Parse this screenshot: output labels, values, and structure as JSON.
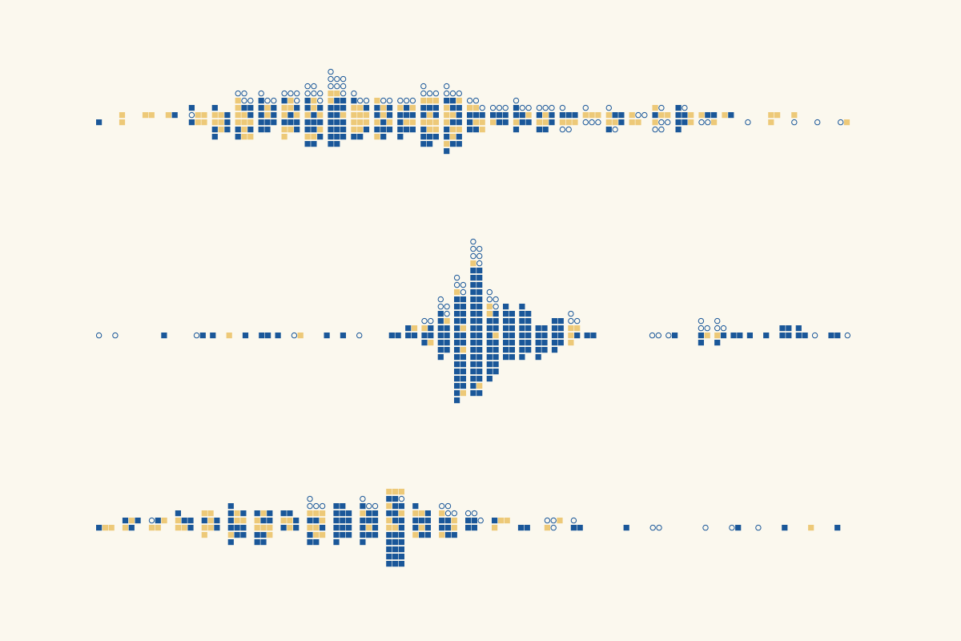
{
  "background": "#FBF8EE",
  "legend_categories": [
    {
      "key": "blue",
      "shape": "square",
      "color": "#1A5799"
    },
    {
      "key": "gold",
      "shape": "square",
      "color": "#EDC978"
    },
    {
      "key": "open",
      "shape": "circle",
      "color": "#1A5799"
    }
  ],
  "chart_data": [
    {
      "type": "dot-histogram",
      "title": "",
      "xlabel": "",
      "ylabel": "",
      "grid": false,
      "bins": [
        {
          "above": "",
          "below": "b"
        },
        {
          "above": "g",
          "below": "g"
        },
        {
          "above": "gg",
          "below": ""
        },
        {
          "above": "gb",
          "below": ""
        },
        {
          "above": "oggb",
          "below": "bgg"
        },
        {
          "above": "ggbb",
          "below": "ggbbgbb"
        },
        {
          "above": "ggbgbbgoooo",
          "below": "gggbgbbgg"
        },
        {
          "above": "bgbbgbbooo",
          "below": "bbbbb"
        },
        {
          "above": "gbgggbbgoooo",
          "below": "bbbggbg"
        },
        {
          "above": "gbgbgbbgoooooo",
          "below": "bbbbbgggbbb"
        },
        {
          "above": "bbgbbbgbbggoooooooo",
          "below": "bbbbbbbbbbb"
        },
        {
          "above": "gggggbbooo",
          "below": "gggggbbb"
        },
        {
          "above": "bgbbgbgoo",
          "below": "gbgbbbgb"
        },
        {
          "above": "bbbgbgooo",
          "below": "bggbbbb"
        },
        {
          "above": "bgbbbbgggoooo",
          "below": "gggbggbbbbb"
        },
        {
          "above": "ggbgbbbbgoooo",
          "below": "gbbbggbgbgbbb"
        },
        {
          "above": "bbbggooo",
          "below": "bggbbg"
        },
        {
          "above": "bbbooo",
          "below": "gbb"
        },
        {
          "above": "bbgbooo",
          "below": "gbbb"
        },
        {
          "above": "bgbooo",
          "below": "ggbbb"
        },
        {
          "above": "bbbo",
          "below": "gggoo"
        },
        {
          "above": "gggo",
          "below": "ooo"
        },
        {
          "above": "gbbo",
          "below": "ggbbo"
        },
        {
          "above": "goo",
          "below": "gg"
        },
        {
          "above": "bgggo",
          "below": "goooo"
        },
        {
          "above": "bbgbo",
          "below": "bbgb"
        },
        {
          "above": "gbb",
          "below": "oog"
        },
        {
          "above": "gb",
          "below": ""
        },
        {
          "above": "",
          "below": "o"
        },
        {
          "above": "gg",
          "below": "g"
        },
        {
          "above": "g",
          "below": "o"
        },
        {
          "above": "",
          "below": "o"
        },
        {
          "above": "",
          "below": "og"
        }
      ]
    },
    {
      "type": "dot-histogram",
      "title": "",
      "xlabel": "",
      "ylabel": "",
      "grid": false,
      "bins": [
        {
          "above": "",
          "below": "o"
        },
        {
          "above": "",
          "below": "o"
        },
        {
          "above": "",
          "below": ""
        },
        {
          "above": "",
          "below": ""
        },
        {
          "above": "",
          "below": "b"
        },
        {
          "above": "",
          "below": ""
        },
        {
          "above": "",
          "below": "ob"
        },
        {
          "above": "",
          "below": "b"
        },
        {
          "above": "",
          "below": "g"
        },
        {
          "above": "",
          "below": "b"
        },
        {
          "above": "",
          "below": "bb"
        },
        {
          "above": "",
          "below": "b"
        },
        {
          "above": "",
          "below": "og"
        },
        {
          "above": "",
          "below": ""
        },
        {
          "above": "",
          "below": "b"
        },
        {
          "above": "",
          "below": "b"
        },
        {
          "above": "",
          "below": "o"
        },
        {
          "above": "",
          "below": ""
        },
        {
          "above": "",
          "below": "bb"
        },
        {
          "above": "bg",
          "below": "bb"
        },
        {
          "above": "gboo",
          "below": "bbbg"
        },
        {
          "above": "bbbgboooo",
          "below": "bbbbbbb"
        },
        {
          "above": "bgbbbbbbbbgoooo",
          "below": "bbbbbgbbbbbbbbbbbgb"
        },
        {
          "above": "bbbbbbbbbbbbbbbbbbgoooooo",
          "below": "bbbbbbbbbbbbbbbgbb"
        },
        {
          "above": "bbbbgbgoooo",
          "below": "bgbbbbbbbbbbb"
        },
        {
          "above": "bbbbbbb",
          "below": "bbbbbbbb"
        },
        {
          "above": "bbbbbbb",
          "below": "bbbbbbb"
        },
        {
          "above": "bb",
          "below": "bbbbbbb"
        },
        {
          "above": "bbbb",
          "below": "bbbbb"
        },
        {
          "above": "ggooo",
          "below": "gbg"
        },
        {
          "above": "",
          "below": "bb"
        },
        {
          "above": "",
          "below": ""
        },
        {
          "above": "",
          "below": ""
        },
        {
          "above": "",
          "below": ""
        },
        {
          "above": "",
          "below": "oo"
        },
        {
          "above": "",
          "below": "ob"
        },
        {
          "above": "",
          "below": ""
        },
        {
          "above": "ooo",
          "below": "bgb"
        },
        {
          "above": "ooo",
          "below": "gbb"
        },
        {
          "above": "",
          "below": "bb"
        },
        {
          "above": "",
          "below": "b"
        },
        {
          "above": "",
          "below": "b"
        },
        {
          "above": "bb",
          "below": "bb"
        },
        {
          "above": "b",
          "below": "bb"
        },
        {
          "above": "",
          "below": "o"
        },
        {
          "above": "",
          "below": "bb"
        },
        {
          "above": "",
          "below": "o"
        }
      ]
    },
    {
      "type": "dot-histogram",
      "title": "",
      "xlabel": "",
      "ylabel": "",
      "grid": false,
      "bins": [
        {
          "above": "",
          "below": "bgg"
        },
        {
          "above": "bgb",
          "below": "gb"
        },
        {
          "above": "obg",
          "below": "gg"
        },
        {
          "above": "gbbb",
          "below": "ggb"
        },
        {
          "above": "bgbgg",
          "below": "ggbg"
        },
        {
          "above": "bggbgbb",
          "below": "bbbgbbb"
        },
        {
          "above": "gbbbgb",
          "below": "gggbbgbb"
        },
        {
          "above": "ggbbb",
          "below": "bgb"
        },
        {
          "above": "bbggggoooo",
          "below": "ggbbggbb"
        },
        {
          "above": "bbbbbbbb",
          "below": "bbbbbbb"
        },
        {
          "above": "bbbgbbbooo",
          "below": "bgbbbbb"
        },
        {
          "above": "gbbbbggbbbboggg",
          "below": "ggbbbbbbbbbbbbbbbb"
        },
        {
          "above": "bbbggbb",
          "below": "bgbgbb"
        },
        {
          "above": "bbggoooo",
          "below": "bbggbb"
        },
        {
          "above": "bbooo",
          "below": "bb"
        },
        {
          "above": "bgg",
          "below": "g"
        },
        {
          "above": "",
          "below": "bb"
        },
        {
          "above": "oog",
          "below": "go"
        },
        {
          "above": "o",
          "below": "bb"
        },
        {
          "above": "",
          "below": ""
        },
        {
          "above": "",
          "below": "b"
        },
        {
          "above": "",
          "below": "oo"
        },
        {
          "above": "",
          "below": ""
        },
        {
          "above": "",
          "below": "o"
        },
        {
          "above": "",
          "below": "ob"
        },
        {
          "above": "",
          "below": "o"
        },
        {
          "above": "",
          "below": "b"
        },
        {
          "above": "",
          "below": "g"
        },
        {
          "above": "",
          "below": "b"
        }
      ]
    }
  ]
}
